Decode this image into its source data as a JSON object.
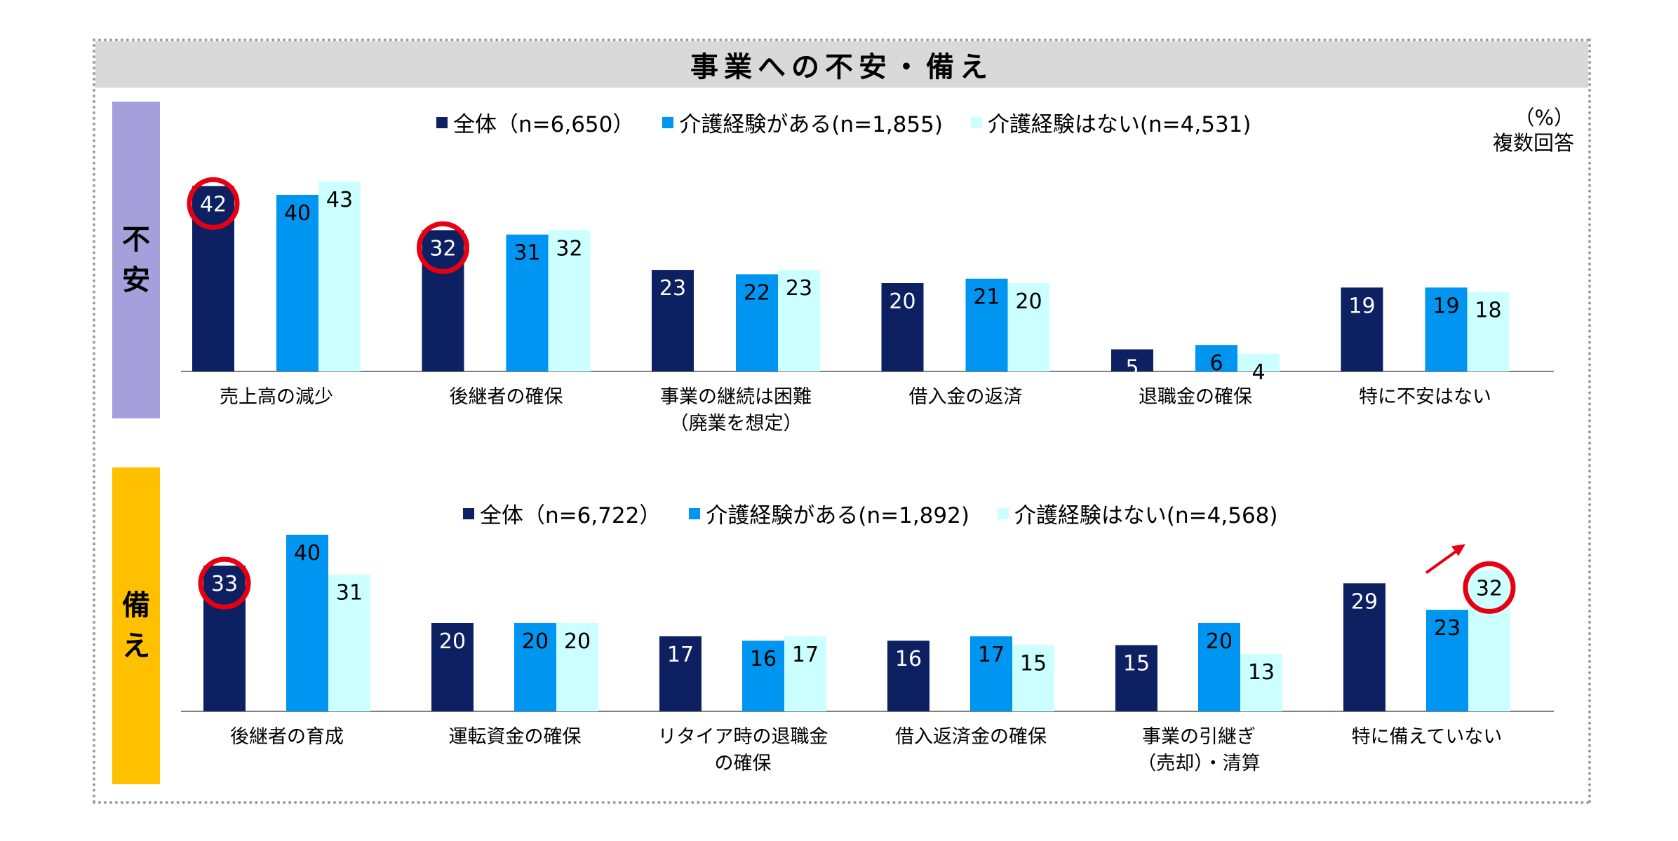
{
  "title": "事業への不安・備え",
  "note": [
    "（%）",
    "複数回答"
  ],
  "colors": {
    "s1": "#0d2061",
    "s2": "#0095f0",
    "s3": "#ccffff",
    "highlight": "#e60012",
    "axis": "#808080"
  },
  "chart_data": [
    {
      "type": "bar",
      "section_label": "不安",
      "series": [
        {
          "name": "全体（n=6,650）",
          "values": [
            42,
            32,
            23,
            20,
            5,
            19
          ]
        },
        {
          "name": "介護経験がある(n=1,855)",
          "values": [
            40,
            31,
            22,
            21,
            6,
            19
          ]
        },
        {
          "name": "介護経験はない(n=4,531)",
          "values": [
            43,
            32,
            23,
            20,
            4,
            18
          ]
        }
      ],
      "categories": [
        [
          "売上高の減少"
        ],
        [
          "後継者の確保"
        ],
        [
          "事業の継続は困難",
          "（廃業を想定）"
        ],
        [
          "借入金の返済"
        ],
        [
          "退職金の確保"
        ],
        [
          "特に不安はない"
        ]
      ],
      "highlights": [
        {
          "series": 0,
          "category": 0
        },
        {
          "series": 0,
          "category": 1
        }
      ]
    },
    {
      "type": "bar",
      "section_label": "備え",
      "series": [
        {
          "name": "全体（n=6,722）",
          "values": [
            33,
            20,
            17,
            16,
            15,
            29
          ]
        },
        {
          "name": "介護経験がある(n=1,892)",
          "values": [
            40,
            20,
            16,
            17,
            20,
            23
          ]
        },
        {
          "name": "介護経験はない(n=4,568)",
          "values": [
            31,
            20,
            17,
            15,
            13,
            32
          ]
        }
      ],
      "categories": [
        [
          "後継者の育成"
        ],
        [
          "運転資金の確保"
        ],
        [
          "リタイア時の退職金",
          "の確保"
        ],
        [
          "借入返済金の確保"
        ],
        [
          "事業の引継ぎ",
          "（売却）・清算"
        ],
        [
          "特に備えていない"
        ]
      ],
      "highlights": [
        {
          "series": 0,
          "category": 0
        },
        {
          "series": 2,
          "category": 5
        }
      ],
      "arrow": {
        "series": 2,
        "category": 5
      }
    }
  ]
}
